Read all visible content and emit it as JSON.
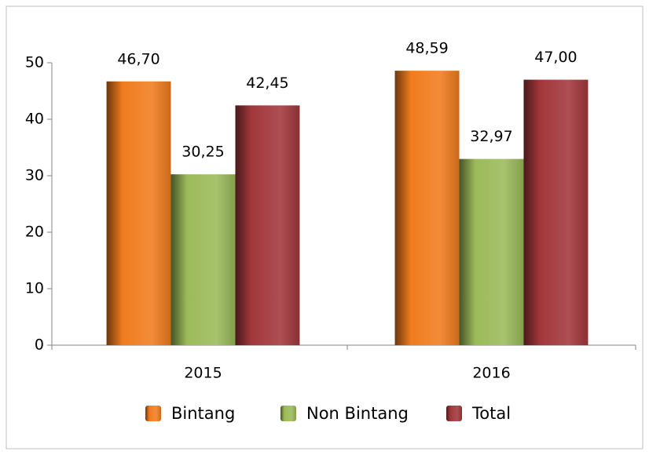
{
  "chart_data": {
    "type": "bar",
    "categories": [
      "2015",
      "2016"
    ],
    "series": [
      {
        "name": "Bintang",
        "color": "#f07c1e",
        "values": [
          46.7,
          48.59
        ],
        "value_labels": [
          "46,70",
          "48,59"
        ]
      },
      {
        "name": "Non Bintang",
        "color": "#9bbb59",
        "values": [
          30.25,
          32.97
        ],
        "value_labels": [
          "30,25",
          "32,97"
        ]
      },
      {
        "name": "Total",
        "color": "#a2373b",
        "values": [
          42.45,
          47.0
        ],
        "value_labels": [
          "42,45",
          "47,00"
        ]
      }
    ],
    "ylim": [
      0,
      50
    ],
    "yticks": [
      0,
      10,
      20,
      30,
      40,
      50
    ],
    "grid": false,
    "legend": "bottom"
  }
}
